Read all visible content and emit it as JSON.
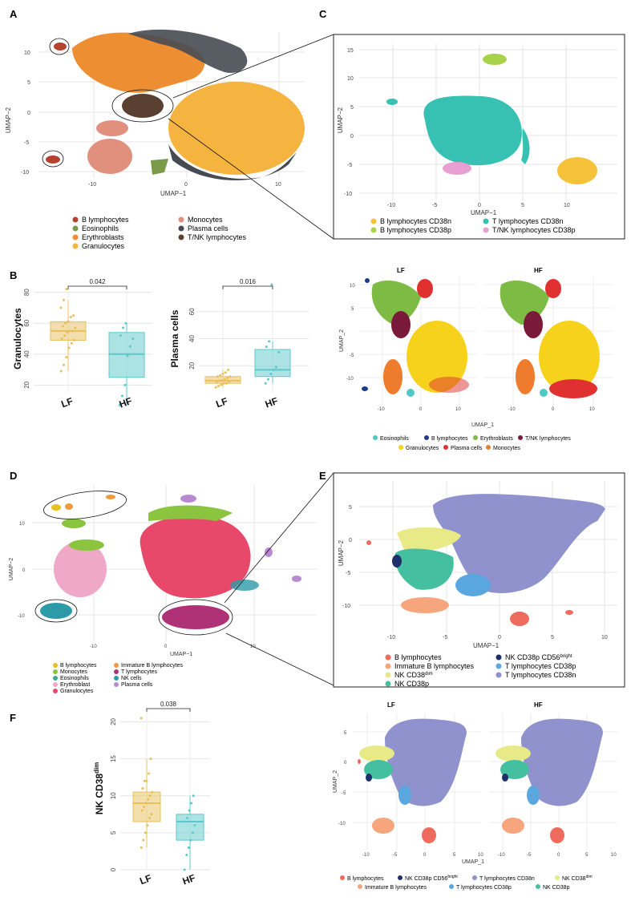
{
  "panel_letters": {
    "A": "A",
    "B": "B",
    "C": "C",
    "D": "D",
    "E": "E",
    "F": "F"
  },
  "colors": {
    "B lymphocytes_A": "#b5412e",
    "Eosinophils_A": "#7a9a4a",
    "Erythroblasts_A": "#ee8e32",
    "Granulocytes_A": "#f4b43f",
    "Monocytes_A": "#e0907c",
    "Plasma cells_A": "#464a52",
    "T/NK lymphocytes_A": "#5a4030",
    "box_LF": "#e8c05a",
    "box_HF": "#5cc8cc",
    "C_B38n": "#f5c23a",
    "C_B38p": "#a8d24a",
    "C_T38n": "#36c1b3",
    "C_TNK38p": "#e79ed0",
    "B2_Eos": "#4ec9c4",
    "B2_Blym": "#1f3b8c",
    "B2_Ery": "#7dbb45",
    "B2_TNK": "#7a1a3a",
    "B2_Gran": "#f7d21c",
    "B2_Plasma": "#e03030",
    "B2_Mono": "#ef7b2d",
    "D_Blym": "#e8c021",
    "D_Mono": "#8bc43f",
    "D_Eos": "#3aaa97",
    "D_Ery": "#f0a8c8",
    "D_Gran": "#e8486a",
    "D_ImmB": "#f09a3e",
    "D_T": "#b03276",
    "D_NK": "#2d9aa8",
    "D_Plasma": "#b98ad1",
    "E_Blym": "#ee6b5d",
    "E_ImmB": "#f6a57c",
    "E_NKdim": "#e8ea88",
    "E_NK38p": "#44bf9f",
    "E_NK56": "#1f2f6b",
    "E_T38p": "#5aa7e0",
    "E_T38n": "#8f92cc"
  },
  "panelA": {
    "xlabel": "UMAP−1",
    "ylabel": "UMAP−2",
    "xticks": [
      "-10",
      "0",
      "10"
    ],
    "yticks": [
      "10",
      "5",
      "0",
      "-5",
      "-10"
    ],
    "legend": [
      "B lymphocytes",
      "Eosinophils",
      "Erythroblasts",
      "Granulocytes",
      "Monocytes",
      "Plasma cells",
      "T/NK lymphocytes"
    ]
  },
  "panelC": {
    "xlabel": "UMAP−1",
    "ylabel": "UMAP−2",
    "xticks": [
      "-10",
      "-5",
      "0",
      "5",
      "10"
    ],
    "yticks": [
      "15",
      "10",
      "5",
      "0",
      "-5",
      "-10"
    ],
    "legend": [
      "B lymphocytes CD38n",
      "B lymphocytes CD38p",
      "T lymphocytes CD38n",
      "T/NK lymphocytes CD38p"
    ]
  },
  "panelB": {
    "left": {
      "ylabel": "Granulocytes",
      "yticks": [
        "80",
        "60",
        "40",
        "20"
      ],
      "pvalue": "0.042",
      "categories": [
        "LF",
        "HF"
      ]
    },
    "right": {
      "ylabel": "Plasma cells",
      "yticks": [
        "60",
        "40",
        "20"
      ],
      "pvalue": "0.016",
      "categories": [
        "LF",
        "HF"
      ]
    }
  },
  "panelB2": {
    "titles": [
      "LF",
      "HF"
    ],
    "xlabel": "UMAP_1",
    "ylabel": "UMAP_2",
    "xticks": [
      "-10",
      "0",
      "10"
    ],
    "yticks": [
      "10",
      "5",
      "0",
      "-5",
      "-10"
    ],
    "legend": [
      "Eosinophils",
      "B lymphocytes",
      "Erythroblasts",
      "T/NK lymphocytes",
      "Granulocytes",
      "Plasma cells",
      "Monocytes"
    ]
  },
  "panelD": {
    "xlabel": "UMAP−1",
    "ylabel": "UMAP−2",
    "xticks": [
      "-10",
      "0",
      "10"
    ],
    "yticks": [
      "10",
      "0",
      "-10"
    ],
    "legend": [
      "B lymphocytes",
      "Monocytes",
      "Eosinophils",
      "Erythroblast",
      "Granulocytes",
      "Immature B lymphocytes",
      "T lymphocytes",
      "NK cells",
      "Plasma cells"
    ]
  },
  "panelE": {
    "xlabel": "UMAP−1",
    "ylabel": "UMAP−2",
    "xticks": [
      "-10",
      "-5",
      "0",
      "5",
      "10"
    ],
    "yticks": [
      "5",
      "0",
      "-5",
      "-10"
    ],
    "legend": [
      "B lymphocytes",
      "Immature B lymphocytes",
      "NK CD38",
      "NK CD38p",
      "NK CD38p CD56",
      "T lymphocytes CD38p",
      "T lymphocytes CD38n"
    ],
    "legend_sup": {
      "NK CD38": "dim",
      "NK CD38p CD56": "bright"
    }
  },
  "panelF": {
    "ylabel": "NK CD38",
    "ylabel_sup": "dim",
    "yticks": [
      "20",
      "15",
      "10",
      "5",
      "0"
    ],
    "pvalue": "0.038",
    "categories": [
      "LF",
      "HF"
    ]
  },
  "panelE2": {
    "titles": [
      "LF",
      "HF"
    ],
    "xlabel": "UMAP_1",
    "ylabel": "UMAP_2",
    "xticks": [
      "-10",
      "-5",
      "0",
      "5",
      "10"
    ],
    "yticks": [
      "5",
      "0",
      "-5",
      "-10"
    ],
    "legend": [
      "B lymphocytes",
      "NK CD38p CD56",
      "T lymphocytes CD38n",
      "NK CD38",
      "Immature B lymphocytes",
      "T lymphocytes CD38p",
      "NK CD38p"
    ],
    "legend_sup": {
      "NK CD38p CD56": "bright",
      "NK CD38": "dim"
    }
  },
  "chart_data": [
    {
      "type": "box",
      "panel": "B-left",
      "ylabel": "Granulocytes",
      "categories": [
        "LF",
        "HF"
      ],
      "ylim": [
        15,
        85
      ],
      "series": [
        {
          "name": "LF",
          "q1": 49,
          "median": 55,
          "q3": 61,
          "whisker_low": 29,
          "whisker_high": 75,
          "points": [
            29,
            33,
            38,
            44,
            47,
            49,
            50,
            52,
            54,
            55,
            55,
            57,
            58,
            60,
            61,
            64,
            65,
            70,
            75,
            82
          ]
        },
        {
          "name": "HF",
          "q1": 25,
          "median": 40,
          "q3": 54,
          "whisker_low": 7,
          "whisker_high": 60,
          "points": [
            7,
            13,
            20,
            39,
            45,
            50,
            52,
            57,
            60
          ]
        }
      ],
      "pvalue": "0.042"
    },
    {
      "type": "box",
      "panel": "B-right",
      "ylabel": "Plasma cells",
      "categories": [
        "LF",
        "HF"
      ],
      "ylim": [
        0,
        80
      ],
      "series": [
        {
          "name": "LF",
          "q1": 7,
          "median": 9,
          "q3": 12,
          "whisker_low": 4,
          "whisker_high": 17,
          "points": [
            4,
            5,
            6,
            7,
            7,
            8,
            8,
            9,
            9,
            10,
            11,
            12,
            12,
            13,
            14,
            15,
            17
          ]
        },
        {
          "name": "HF",
          "q1": 12,
          "median": 17,
          "q3": 32,
          "whisker_low": 7,
          "whisker_high": 38,
          "points": [
            7,
            10,
            14,
            17,
            19,
            30,
            34,
            38,
            80
          ]
        }
      ],
      "pvalue": "0.016"
    },
    {
      "type": "box",
      "panel": "F",
      "ylabel": "NK CD38dim",
      "categories": [
        "LF",
        "HF"
      ],
      "ylim": [
        0,
        22
      ],
      "series": [
        {
          "name": "LF",
          "q1": 6.5,
          "median": 9,
          "q3": 10.5,
          "whisker_low": 3,
          "whisker_high": 15,
          "points": [
            3,
            4,
            5,
            6,
            7,
            7.5,
            8,
            8.5,
            9,
            9.5,
            10,
            10.5,
            11,
            12,
            12,
            13,
            15,
            20.5
          ]
        },
        {
          "name": "HF",
          "q1": 4,
          "median": 6.5,
          "q3": 7.5,
          "whisker_low": 0,
          "whisker_high": 10,
          "points": [
            0,
            2,
            3,
            4,
            5,
            6,
            6.5,
            7,
            8,
            9,
            10
          ]
        }
      ],
      "pvalue": "0.038"
    }
  ]
}
